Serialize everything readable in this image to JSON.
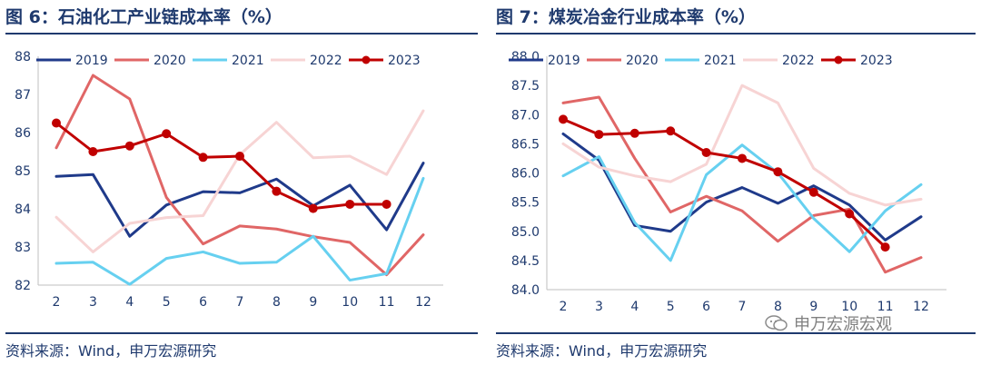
{
  "panels": [
    {
      "title": "图 6：石油化工产业链成本率（%）",
      "source": "资料来源：Wind，申万宏源研究",
      "chart_data": {
        "type": "line",
        "title": "图 6：石油化工产业链成本率（%）",
        "xlabel": "",
        "ylabel": "",
        "x": [
          2,
          3,
          4,
          5,
          6,
          7,
          8,
          9,
          10,
          11,
          12
        ],
        "ylim": [
          82,
          88
        ],
        "yticks": [
          "82",
          "83",
          "84",
          "85",
          "86",
          "87",
          "88"
        ],
        "xticks": [
          "2",
          "3",
          "4",
          "5",
          "6",
          "7",
          "8",
          "9",
          "10",
          "11",
          "12"
        ],
        "legend_position": "top",
        "series": [
          {
            "name": "2019",
            "color": "#1f3a8a",
            "width": 3,
            "markers": false,
            "values": [
              84.85,
              84.9,
              83.28,
              84.1,
              84.45,
              84.42,
              84.78,
              84.08,
              84.62,
              83.45,
              85.2
            ]
          },
          {
            "name": "2020",
            "color": "#e06666",
            "width": 3,
            "markers": false,
            "values": [
              85.6,
              87.5,
              86.88,
              84.3,
              83.08,
              83.55,
              83.47,
              83.27,
              83.12,
              82.27,
              83.32
            ]
          },
          {
            "name": "2021",
            "color": "#66d0f0",
            "width": 3,
            "markers": false,
            "values": [
              82.57,
              82.6,
              82.02,
              82.7,
              82.87,
              82.57,
              82.6,
              83.28,
              82.13,
              82.3,
              84.8
            ]
          },
          {
            "name": "2022",
            "color": "#f7d4d4",
            "width": 3,
            "markers": false,
            "values": [
              83.78,
              82.87,
              83.62,
              83.77,
              83.82,
              85.42,
              86.27,
              85.34,
              85.38,
              84.9,
              86.57
            ]
          },
          {
            "name": "2023",
            "color": "#c00000",
            "width": 3,
            "markers": true,
            "values": [
              86.25,
              85.5,
              85.65,
              85.97,
              85.35,
              85.38,
              84.46,
              84.01,
              84.12,
              84.12,
              null
            ]
          }
        ]
      }
    },
    {
      "title": "图 7：煤炭冶金行业成本率（%）",
      "source": "资料来源：Wind，申万宏源研究",
      "chart_data": {
        "type": "line",
        "title": "图 7：煤炭冶金行业成本率（%）",
        "xlabel": "",
        "ylabel": "",
        "x": [
          2,
          3,
          4,
          5,
          6,
          7,
          8,
          9,
          10,
          11,
          12
        ],
        "ylim": [
          84.0,
          88.0
        ],
        "yticks": [
          "84.0",
          "84.5",
          "85.0",
          "85.5",
          "86.0",
          "86.5",
          "87.0",
          "87.5",
          "88.0"
        ],
        "xticks": [
          "2",
          "3",
          "4",
          "5",
          "6",
          "7",
          "8",
          "9",
          "10",
          "11",
          "12"
        ],
        "legend_position": "top",
        "series": [
          {
            "name": "2019",
            "color": "#1f3a8a",
            "width": 3,
            "markers": false,
            "values": [
              86.67,
              86.22,
              85.1,
              85.0,
              85.5,
              85.75,
              85.48,
              85.78,
              85.45,
              84.85,
              85.25
            ]
          },
          {
            "name": "2020",
            "color": "#e06666",
            "width": 3,
            "markers": false,
            "values": [
              87.2,
              87.3,
              86.25,
              85.33,
              85.6,
              85.35,
              84.83,
              85.27,
              85.38,
              84.3,
              84.55
            ]
          },
          {
            "name": "2021",
            "color": "#66d0f0",
            "width": 3,
            "markers": false,
            "values": [
              85.95,
              86.28,
              85.15,
              84.5,
              85.97,
              86.48,
              86.0,
              85.22,
              84.65,
              85.35,
              85.8
            ]
          },
          {
            "name": "2022",
            "color": "#f7d4d4",
            "width": 3,
            "markers": false,
            "values": [
              86.5,
              86.1,
              85.95,
              85.85,
              86.15,
              87.5,
              87.2,
              86.08,
              85.65,
              85.45,
              85.55
            ]
          },
          {
            "name": "2023",
            "color": "#c00000",
            "width": 3,
            "markers": true,
            "values": [
              86.92,
              86.66,
              86.68,
              86.72,
              86.35,
              86.25,
              86.02,
              85.67,
              85.3,
              84.73,
              null
            ]
          }
        ]
      }
    }
  ],
  "watermark": "申万宏源宏观"
}
